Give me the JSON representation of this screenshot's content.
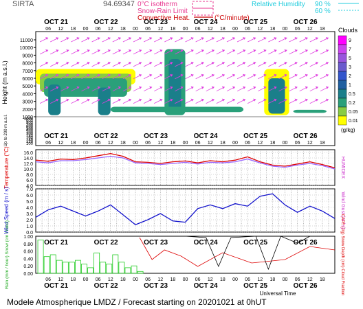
{
  "header": {
    "station": "SIRTA",
    "coords": "94.69347",
    "legend": [
      {
        "label": "0°C isotherm",
        "color": "#e8368f",
        "style": "dash"
      },
      {
        "label": "Snow-Rain Limit",
        "color": "#e8368f",
        "style": "dash"
      },
      {
        "label": "Convective Heat.",
        "color": "#cc0000",
        "style": "solid"
      },
      {
        "label": "(°C/minute)",
        "color": "#cc0000",
        "style": "none"
      }
    ],
    "rh_label": "Relative Humidity",
    "rh_values": [
      "90 %",
      "60 %"
    ],
    "rh_color": "#22ccdd"
  },
  "footer": {
    "title": "Modele Atmospherique LMDZ / Forecast starting on 20201021 at 0hUT",
    "x_title": "Universal Time"
  },
  "days": [
    "OCT 21",
    "OCT 22",
    "OCT 23",
    "OCT 24",
    "OCT 25",
    "OCT 26"
  ],
  "hours": [
    "06",
    "12",
    "18",
    "00"
  ],
  "chart_data": [
    {
      "type": "heatmap",
      "name": "clouds",
      "ylabel": "Height (m a.s.l.)",
      "ylabel_low": "Up to 200 m a.s.l.",
      "yticks_upper": [
        1000,
        2000,
        3000,
        4000,
        5000,
        6000,
        7000,
        8000,
        9000,
        10000,
        11000
      ],
      "yticks_lower": [
        1000,
        900,
        800,
        700,
        600,
        500,
        400,
        300,
        200,
        180,
        160,
        140,
        120,
        100
      ],
      "colorbar_title": "Clouds",
      "colorbar_unit": "(g/kg)",
      "colorbar_labels": [
        "9",
        "7",
        "5",
        "3",
        "2",
        "1",
        "0.5",
        "0.2",
        "0.05",
        "0.01"
      ],
      "colorbar_colors": [
        "#ff00ff",
        "#cc44ee",
        "#9955dd",
        "#6a5acd",
        "#3355cc",
        "#1f5fa0",
        "#1a7f8a",
        "#2aa07a",
        "#88cc44",
        "#ffff00"
      ]
    },
    {
      "type": "line",
      "name": "temperature",
      "ylabel": "Temperature (°C)",
      "ylabel_right": "HUMIDEX",
      "yticks": [
        4.0,
        6.0,
        8.0,
        10.0,
        12.0,
        14.0,
        16.0
      ],
      "ylim": [
        4,
        17
      ],
      "x_hours": [
        0,
        6,
        12,
        18,
        24,
        30,
        36,
        42,
        48,
        54,
        60,
        66,
        72,
        78,
        84,
        90,
        96,
        102,
        108,
        114,
        120,
        126,
        132,
        138,
        144
      ],
      "series": [
        {
          "color": "#dd0000",
          "values": [
            13.2,
            12.8,
            13.6,
            13.4,
            14.0,
            14.8,
            15.6,
            14.6,
            12.6,
            12.4,
            12.0,
            12.6,
            12.9,
            12.2,
            13.0,
            12.6,
            13.2,
            14.4,
            12.6,
            11.4,
            11.0,
            11.8,
            12.6,
            11.6,
            10.4
          ]
        },
        {
          "color": "#9966ff",
          "values": [
            12.6,
            12.2,
            13.0,
            13.0,
            13.4,
            14.0,
            14.6,
            14.0,
            12.2,
            12.0,
            11.6,
            12.0,
            12.4,
            11.8,
            12.4,
            12.2,
            12.6,
            13.6,
            12.2,
            11.0,
            10.6,
            11.4,
            12.0,
            11.2,
            10.0
          ]
        }
      ]
    },
    {
      "type": "line",
      "name": "wind",
      "ylabel": "Wind Speed (m / s)",
      "ylabel_right": "Wind Gust (m / s)",
      "yticks": [
        0.0,
        1.0,
        2.0,
        3.0,
        4.0,
        5.0,
        6.0,
        7.0
      ],
      "ylim": [
        0,
        7
      ],
      "x_hours": [
        0,
        6,
        12,
        18,
        24,
        30,
        36,
        42,
        48,
        54,
        60,
        66,
        72,
        78,
        84,
        90,
        96,
        102,
        108,
        114,
        120,
        126,
        132,
        138,
        144
      ],
      "series": [
        {
          "color": "#1111cc",
          "values": [
            2.4,
            3.6,
            4.2,
            3.4,
            2.6,
            3.4,
            4.4,
            2.8,
            1.2,
            2.0,
            3.0,
            1.8,
            1.6,
            3.8,
            4.4,
            3.8,
            4.6,
            4.2,
            5.8,
            6.2,
            4.4,
            3.2,
            4.2,
            3.4,
            2.2
          ]
        }
      ]
    },
    {
      "type": "bar",
      "name": "precip",
      "ylabel": "Rain (mm / hour) Snow (cm / hour)",
      "ylabel_right": "CAPE (J/g) Snow Depth (cm) Cloud Fraction",
      "yticks": [
        0.0,
        0.2,
        0.4,
        0.6,
        0.8,
        1.0
      ],
      "ylim": [
        0,
        1
      ],
      "x_hours": [
        2,
        5,
        8,
        11,
        14,
        17,
        20,
        23,
        26,
        29,
        32,
        35,
        38,
        41,
        44,
        47,
        50,
        53,
        56,
        59,
        62,
        65,
        68,
        71,
        74,
        77,
        80,
        83,
        86,
        89,
        92,
        95,
        98,
        101,
        104,
        107,
        110,
        113,
        116,
        119,
        122,
        125,
        128,
        131,
        134,
        137,
        140,
        143
      ],
      "values": [
        0.9,
        0.45,
        0.5,
        0.35,
        0.3,
        0.3,
        0.35,
        0.25,
        0.15,
        0.55,
        0.3,
        0.25,
        0.5,
        0.3,
        0.15,
        0.2,
        0.05,
        0.0,
        0.0,
        0.0,
        0.0,
        0.0,
        0.0,
        0.0,
        0.0,
        0.0,
        0.0,
        0.0,
        0.0,
        0.0,
        0.0,
        0.0,
        0.0,
        0.0,
        0.0,
        0.0,
        0.0,
        0.0,
        0.0,
        0.0,
        0.0,
        0.0,
        0.0,
        0.0,
        0.0,
        0.0,
        0.0,
        0.0
      ]
    }
  ]
}
